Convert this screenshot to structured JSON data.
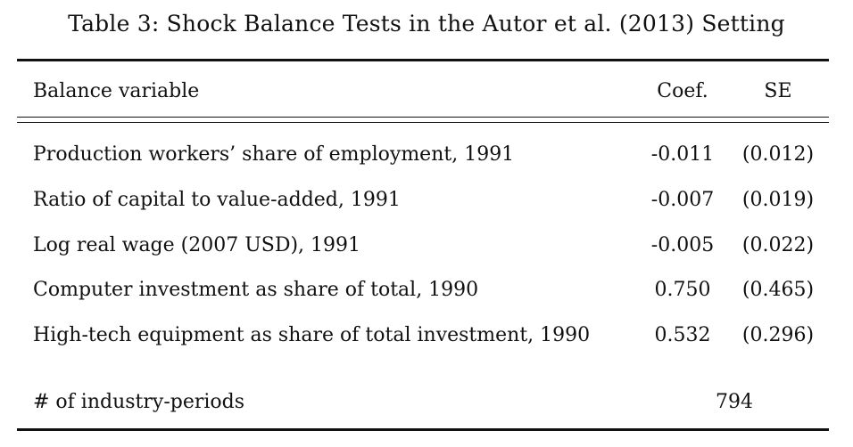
{
  "table": {
    "caption": "Table 3: Shock Balance Tests in the Autor et al. (2013) Setting",
    "headers": {
      "variable": "Balance variable",
      "coef": "Coef.",
      "se": "SE"
    },
    "rows": [
      {
        "label": "Production workers’ share of employment, 1991",
        "coef": "-0.011",
        "se": "(0.012)"
      },
      {
        "label": "Ratio of capital to value-added, 1991",
        "coef": "-0.007",
        "se": "(0.019)"
      },
      {
        "label": "Log real wage (2007 USD), 1991",
        "coef": "-0.005",
        "se": "(0.022)"
      },
      {
        "label": "Computer investment as share of total, 1990",
        "coef": "0.750",
        "se": "(0.465)"
      },
      {
        "label": "High-tech equipment as share of total investment, 1990",
        "coef": "0.532",
        "se": "(0.296)"
      }
    ],
    "footer": {
      "label": "# of industry-periods",
      "value": "794"
    }
  }
}
